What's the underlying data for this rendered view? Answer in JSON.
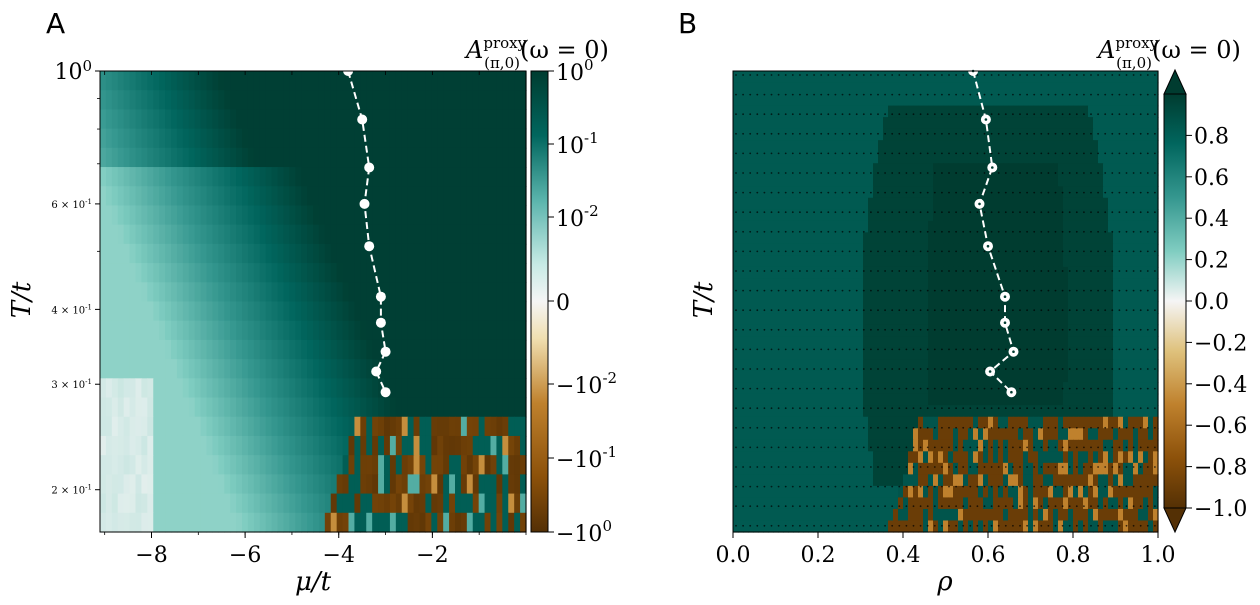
{
  "chart_data": [
    {
      "panel": "A",
      "type": "heatmap",
      "xlabel": "μ/t",
      "ylabel": "T/t",
      "xlim": [
        -9.1,
        0
      ],
      "ylim": [
        0.17,
        1.0
      ],
      "yscale": "log",
      "x_ticks": [
        "−8",
        "−6",
        "−4",
        "−2"
      ],
      "x_tick_values": [
        -8,
        -6,
        -4,
        -2
      ],
      "y_tick_labels": [
        {
          "label": "10^0",
          "value": 1.0
        },
        {
          "label": "6 × 10^-1",
          "value": 0.6
        },
        {
          "label": "4 × 10^-1",
          "value": 0.4
        },
        {
          "label": "3 × 10^-1",
          "value": 0.3
        },
        {
          "label": "2 × 10^-1",
          "value": 0.2
        }
      ],
      "colorbar": {
        "title": "A^proxy_(π,0)(ω = 0)",
        "scale": "symlog",
        "ticks": [
          "10^0",
          "10^-1",
          "10^-2",
          "0",
          "−10^-2",
          "−10^-1",
          "−10^0"
        ],
        "range": [
          -1,
          1
        ]
      },
      "series": [
        {
          "style": "white dashed line with filled circle markers",
          "points": [
            {
              "x": -3.8,
              "y": 1.0
            },
            {
              "x": -3.5,
              "y": 0.83
            },
            {
              "x": -3.35,
              "y": 0.69
            },
            {
              "x": -3.45,
              "y": 0.6
            },
            {
              "x": -3.35,
              "y": 0.51
            },
            {
              "x": -3.1,
              "y": 0.42
            },
            {
              "x": -3.1,
              "y": 0.38
            },
            {
              "x": -3.0,
              "y": 0.34
            },
            {
              "x": -3.2,
              "y": 0.315
            },
            {
              "x": -3.0,
              "y": 0.291
            }
          ]
        }
      ]
    },
    {
      "panel": "B",
      "type": "heatmap",
      "xlabel": "ρ",
      "ylabel": "T/t",
      "xlim": [
        0.0,
        1.0
      ],
      "ylim": [
        0.17,
        1.0
      ],
      "x_ticks": [
        "0.0",
        "0.2",
        "0.4",
        "0.6",
        "0.8",
        "1.0"
      ],
      "x_tick_values": [
        0.0,
        0.2,
        0.4,
        0.6,
        0.8,
        1.0
      ],
      "colorbar": {
        "title": "A^proxy_(π,0)(ω = 0)",
        "scale": "linear",
        "ticks": [
          "0.8",
          "0.6",
          "0.4",
          "0.2",
          "0.0",
          "−0.2",
          "−0.4",
          "−0.6",
          "−0.8",
          "−1.0"
        ],
        "tick_values": [
          0.8,
          0.6,
          0.4,
          0.2,
          0.0,
          -0.2,
          -0.4,
          -0.6,
          -0.8,
          -1.0
        ],
        "range": [
          -1,
          1
        ],
        "extend": "both"
      },
      "series": [
        {
          "style": "white dashed line with open circle markers",
          "points": [
            {
              "x": 0.565,
              "y": 1.0
            },
            {
              "x": 0.595,
              "y": 0.83
            },
            {
              "x": 0.61,
              "y": 0.69
            },
            {
              "x": 0.58,
              "y": 0.6
            },
            {
              "x": 0.6,
              "y": 0.51
            },
            {
              "x": 0.64,
              "y": 0.42
            },
            {
              "x": 0.64,
              "y": 0.38
            },
            {
              "x": 0.66,
              "y": 0.34
            },
            {
              "x": 0.605,
              "y": 0.315
            },
            {
              "x": 0.655,
              "y": 0.291
            }
          ]
        }
      ]
    }
  ],
  "labels": {
    "panel_a": "A",
    "panel_b": "B",
    "x_label_a": "μ/t",
    "x_label_b": "ρ",
    "y_label_a": "T/t",
    "y_label_b": "T/t",
    "cb_title_main": "A",
    "cb_title_sup": "proxy",
    "cb_title_sub": "(π,0)",
    "cb_title_rest": "(ω = 0)"
  },
  "colors": {
    "positive_max": "#00463c",
    "zero": "#f5f5f5",
    "negative_max": "#543005",
    "marker": "#ffffff"
  }
}
